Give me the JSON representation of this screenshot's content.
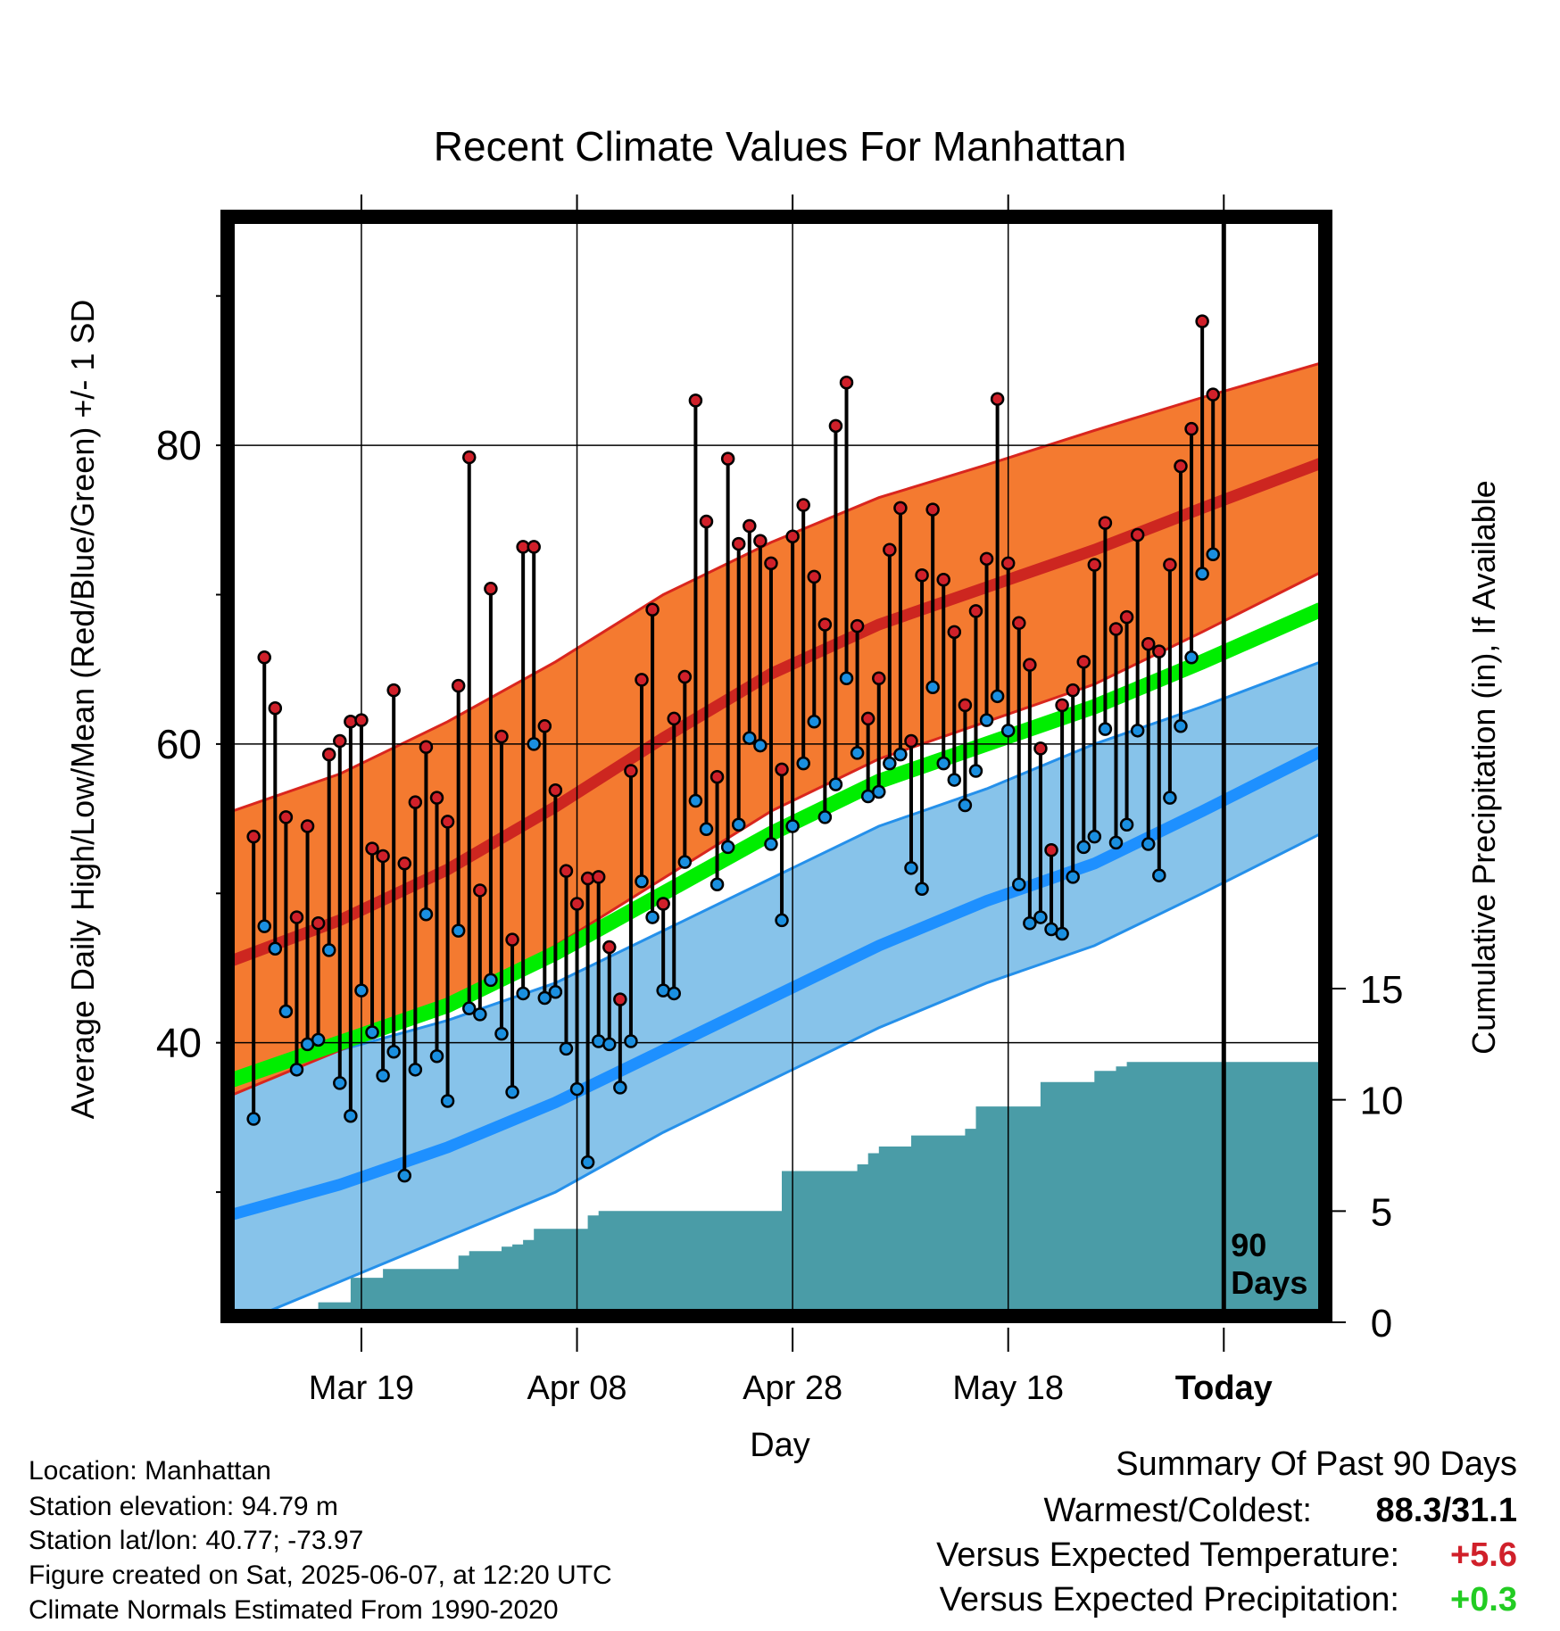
{
  "chart_data": {
    "type": "line",
    "title": "Recent Climate Values For Manhattan",
    "xlabel": "Day",
    "ylabel": "Average Daily High/Low/Mean (Red/Blue/Green) +/- 1 SD",
    "y2label": "Cumulative Precipitation (in), If Available",
    "x_ticks": [
      {
        "label": "Mar 19",
        "day": 12
      },
      {
        "label": "Apr 08",
        "day": 32
      },
      {
        "label": "Apr 28",
        "day": 52
      },
      {
        "label": "May 18",
        "day": 72
      },
      {
        "label": "Today",
        "day": 92
      }
    ],
    "x_range": [
      0,
      101
    ],
    "ylim": [
      22,
      95
    ],
    "y_ticks": [
      40,
      60,
      80
    ],
    "y2lim": [
      0,
      15
    ],
    "y2_ticks": [
      0,
      5,
      10,
      15
    ],
    "today_marker": {
      "day": 92,
      "label_line1": "90",
      "label_line2": "Days"
    },
    "grid": true,
    "colors": {
      "high_band": "#f47a30",
      "high_band_edge": "#d9261e",
      "high_mean": "#cd2620",
      "low_band": "#87c3ea",
      "low_band_edge": "#2590ea",
      "low_mean": "#1e90ff",
      "mean": "#00ee00",
      "precip": "#4a9ca7",
      "high_marker": "#d0202a",
      "low_marker": "#1a8fe0"
    },
    "normals": {
      "day": [
        0,
        10,
        20,
        30,
        40,
        50,
        60,
        70,
        80,
        90,
        101
      ],
      "high_mean": [
        45.5,
        48.2,
        51.6,
        55.8,
        60.4,
        64.7,
        68.0,
        70.5,
        73.0,
        75.8,
        78.8
      ],
      "high_upper": [
        55.5,
        58.0,
        61.5,
        65.5,
        70.0,
        73.5,
        76.5,
        78.7,
        81.0,
        83.2,
        85.5
      ],
      "high_lower": [
        36.5,
        39.5,
        42.5,
        46.5,
        51.0,
        55.5,
        59.0,
        61.5,
        64.0,
        67.5,
        71.5
      ],
      "mean": [
        37.5,
        40.0,
        42.5,
        46.0,
        50.0,
        54.0,
        57.5,
        60.0,
        62.5,
        65.5,
        69.0
      ],
      "low_mean": [
        28.5,
        30.5,
        33.0,
        36.0,
        39.5,
        43.0,
        46.5,
        49.5,
        52.0,
        55.5,
        59.5
      ],
      "low_upper": [
        37.5,
        39.5,
        41.5,
        44.0,
        47.5,
        51.0,
        54.5,
        57.0,
        60.0,
        62.5,
        65.5
      ],
      "low_lower": [
        21.0,
        24.0,
        27.0,
        30.0,
        34.0,
        37.5,
        41.0,
        44.0,
        46.5,
        50.0,
        54.0
      ]
    },
    "series": [
      {
        "name": "High",
        "values": [
          53.8,
          65.8,
          62.4,
          55.1,
          48.4,
          54.5,
          48.0,
          59.3,
          60.2,
          61.5,
          61.6,
          53.0,
          52.5,
          63.6,
          52.0,
          56.1,
          59.8,
          56.4,
          54.8,
          63.9,
          79.2,
          50.2,
          70.4,
          60.5,
          46.9,
          73.2,
          73.2,
          61.2,
          56.9,
          51.5,
          49.3,
          51.0,
          51.1,
          46.4,
          42.9,
          58.2,
          64.3,
          69.0,
          49.3,
          61.7,
          64.5,
          83.0,
          74.9,
          57.8,
          79.1,
          73.4,
          74.6,
          73.6,
          72.1,
          58.3,
          73.9,
          76.0,
          71.2,
          68.0,
          81.3,
          84.2,
          67.9,
          61.7,
          64.4,
          73.0,
          75.8,
          60.2,
          71.3,
          75.7,
          71.0,
          67.5,
          62.6,
          68.9,
          72.4,
          83.1,
          72.1,
          68.1,
          65.3,
          59.7,
          52.9,
          62.6,
          63.6,
          65.5,
          72.0,
          74.8,
          67.7,
          68.5,
          74.0,
          66.7,
          66.2,
          72.0,
          78.6,
          81.1,
          88.3,
          83.4
        ]
      },
      {
        "name": "Low",
        "values": [
          34.9,
          47.8,
          46.3,
          42.1,
          38.2,
          39.9,
          40.2,
          46.2,
          37.3,
          35.1,
          43.5,
          40.7,
          37.8,
          39.4,
          31.1,
          38.2,
          48.6,
          39.1,
          36.1,
          47.5,
          42.3,
          41.9,
          44.2,
          40.6,
          36.7,
          43.3,
          60.0,
          43.0,
          43.4,
          39.6,
          36.9,
          32.0,
          40.1,
          39.9,
          37.0,
          40.1,
          50.8,
          48.4,
          43.5,
          43.3,
          52.1,
          56.2,
          54.3,
          50.6,
          53.1,
          54.6,
          60.4,
          59.9,
          53.3,
          48.2,
          54.5,
          58.7,
          61.5,
          55.1,
          57.3,
          64.4,
          59.4,
          56.5,
          56.8,
          58.7,
          59.3,
          51.7,
          50.3,
          63.8,
          58.7,
          57.6,
          55.9,
          58.2,
          61.6,
          63.2,
          60.9,
          50.6,
          48.0,
          48.4,
          47.6,
          47.3,
          51.1,
          53.1,
          53.8,
          61.0,
          53.4,
          54.6,
          60.9,
          53.3,
          51.2,
          56.4,
          61.2,
          65.8,
          71.4,
          72.7
        ]
      },
      {
        "name": "Cumulative Precipitation",
        "values": [
          0,
          0,
          0,
          0,
          0,
          0,
          0,
          0,
          0.9,
          0.9,
          0.9,
          2.0,
          2.0,
          2.0,
          2.4,
          2.4,
          2.4,
          2.4,
          2.4,
          2.4,
          2.4,
          3.0,
          3.2,
          3.2,
          3.2,
          3.4,
          3.5,
          3.7,
          4.2,
          4.2,
          4.2,
          4.2,
          4.2,
          4.8,
          5.0,
          5.0,
          5.0,
          5.0,
          5.0,
          5.0,
          5.0,
          5.0,
          5.0,
          5.0,
          5.0,
          5.0,
          5.0,
          5.0,
          5.0,
          5.0,
          5.0,
          6.8,
          6.8,
          6.8,
          6.8,
          6.8,
          6.8,
          6.8,
          7.1,
          7.6,
          7.9,
          7.9,
          7.9,
          8.4,
          8.4,
          8.4,
          8.4,
          8.4,
          8.7,
          9.7,
          9.7,
          9.7,
          9.7,
          9.7,
          9.7,
          10.8,
          10.8,
          10.8,
          10.8,
          10.8,
          11.3,
          11.3,
          11.5,
          11.7,
          11.7,
          11.7,
          11.7,
          11.7,
          11.7,
          11.7,
          11.7,
          11.7,
          11.7,
          11.7,
          11.7,
          11.7,
          11.7,
          11.7,
          11.7,
          11.7,
          11.7,
          11.7
        ]
      }
    ]
  },
  "info": {
    "location": "Location: Manhattan",
    "elevation": "Station elevation: 94.79 m",
    "latlon": "Station lat/lon: 40.77; -73.97",
    "created": "Figure created on Sat, 2025-06-07, at 12:20 UTC",
    "normals": "Climate Normals Estimated From 1990-2020"
  },
  "summary": {
    "title": "Summary Of Past 90 Days",
    "warmest_label": "Warmest/Coldest:",
    "warmest_value": "88.3/31.1",
    "temp_label": "Versus Expected Temperature:",
    "temp_value": "+5.6",
    "precip_label": "Versus Expected Precipitation:",
    "precip_value": "+0.3",
    "temp_color": "#d0202a",
    "precip_color": "#22cc22"
  }
}
